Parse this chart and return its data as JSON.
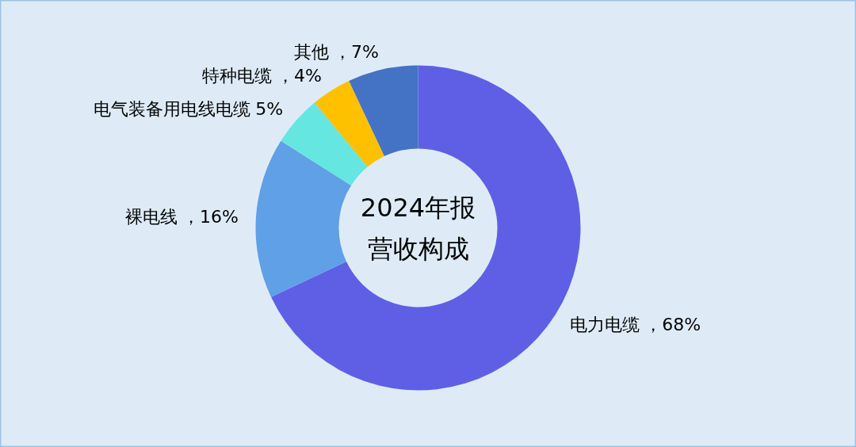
{
  "chart_data": {
    "type": "donut",
    "title": "2024年报营收构成",
    "categories": [
      "电力电缆",
      "裸电线",
      "电气装备用电线电缆",
      "特种电缆",
      "其他"
    ],
    "values": [
      68,
      16,
      5,
      4,
      7
    ],
    "colors": [
      "#5f5fe6",
      "#5fa0e6",
      "#66e6e0",
      "#ffc000",
      "#4472c4"
    ],
    "value_labels": [
      "，68%",
      "，16%",
      "5%",
      "，4%",
      "，7%"
    ],
    "legend": false
  }
}
